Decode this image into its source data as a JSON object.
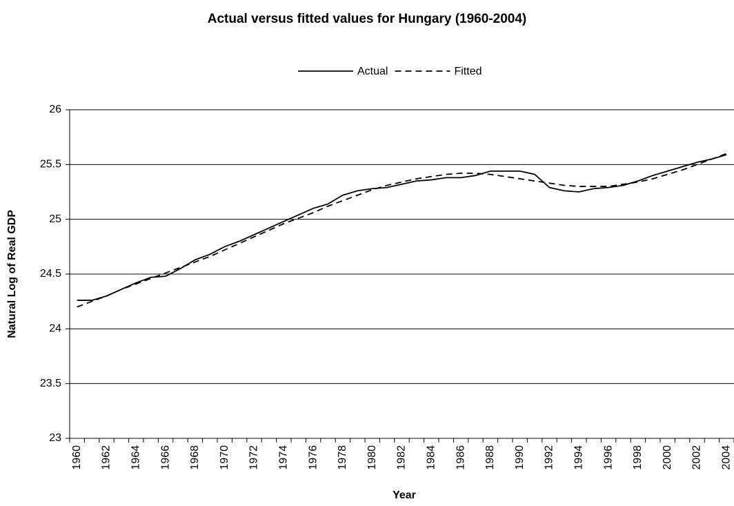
{
  "chart_data": {
    "type": "line",
    "title": "Actual versus fitted values for Hungary (1960-2004)",
    "xlabel": "Year",
    "ylabel": "Natural Log of Real GDP",
    "categories": [
      "1960",
      null,
      "1962",
      null,
      "1964",
      null,
      "1966",
      null,
      "1968",
      null,
      "1970",
      null,
      "1972",
      null,
      "1974",
      null,
      "1976",
      null,
      "1978",
      null,
      "1980",
      null,
      "1982",
      null,
      "1984",
      null,
      "1986",
      null,
      "1988",
      null,
      "1990",
      null,
      "1992",
      null,
      "1994",
      null,
      "1996",
      null,
      "1998",
      null,
      "2000",
      null,
      "2002",
      null,
      "2004"
    ],
    "series": [
      {
        "name": "Actual",
        "color": "#000000",
        "style": "solid",
        "values": [
          24.26,
          24.26,
          24.3,
          24.36,
          24.42,
          24.47,
          24.48,
          24.55,
          24.63,
          24.68,
          24.75,
          24.8,
          24.86,
          24.92,
          24.98,
          25.04,
          25.1,
          25.14,
          25.22,
          25.26,
          25.28,
          25.29,
          25.32,
          25.35,
          25.36,
          25.38,
          25.38,
          25.4,
          25.44,
          25.44,
          25.44,
          25.41,
          25.29,
          25.26,
          25.25,
          25.28,
          25.29,
          25.31,
          25.35,
          25.4,
          25.44,
          25.48,
          25.52,
          25.55,
          25.59
        ]
      },
      {
        "name": "Fitted",
        "color": "#000000",
        "style": "dashed",
        "values": [
          24.2,
          24.25,
          24.3,
          24.36,
          24.41,
          24.46,
          24.51,
          24.56,
          24.61,
          24.66,
          24.72,
          24.78,
          24.84,
          24.9,
          24.96,
          25.01,
          25.06,
          25.12,
          25.17,
          25.22,
          25.27,
          25.31,
          25.34,
          25.37,
          25.39,
          25.41,
          25.42,
          25.42,
          25.41,
          25.39,
          25.37,
          25.35,
          25.33,
          25.31,
          25.3,
          25.3,
          25.3,
          25.32,
          25.34,
          25.37,
          25.41,
          25.45,
          25.5,
          25.55,
          25.6
        ]
      }
    ],
    "ylim": [
      23,
      26
    ],
    "yticks": [
      23,
      23.5,
      24,
      24.5,
      25,
      25.5,
      26
    ],
    "grid": true,
    "legend": "top"
  }
}
